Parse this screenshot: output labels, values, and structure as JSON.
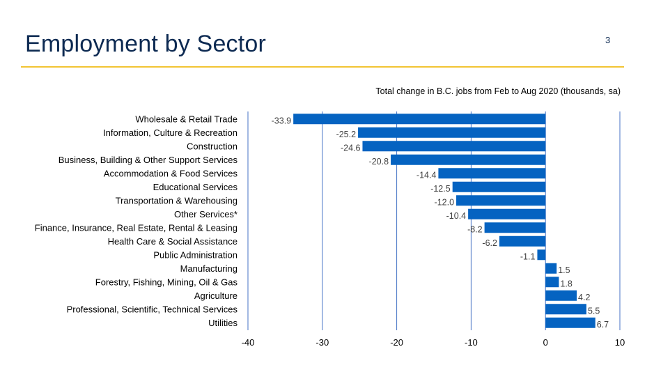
{
  "slide": {
    "title": "Employment by Sector",
    "page_number": "3"
  },
  "colors": {
    "title": "#0d2a52",
    "rule": "#f2c433",
    "bar": "#0563c1",
    "gridline": "#4472c4"
  },
  "chart_data": {
    "type": "bar",
    "orientation": "horizontal",
    "title": "Total change in B.C. jobs from Feb to Aug 2020 (thousands, sa)",
    "categories": [
      "Wholesale & Retail Trade",
      "Information, Culture & Recreation",
      "Construction",
      "Business, Building & Other Support Services",
      "Accommodation & Food Services",
      "Educational Services",
      "Transportation & Warehousing",
      "Other Services*",
      "Finance, Insurance, Real Estate, Rental & Leasing",
      "Health Care & Social Assistance",
      "Public Administration",
      "Manufacturing",
      "Forestry, Fishing, Mining, Oil & Gas",
      "Agriculture",
      "Professional, Scientific, Technical Services",
      "Utilities"
    ],
    "values": [
      -33.9,
      -25.2,
      -24.6,
      -20.8,
      -14.4,
      -12.5,
      -12.0,
      -10.4,
      -8.2,
      -6.2,
      -1.1,
      1.5,
      1.8,
      4.2,
      5.5,
      6.7
    ],
    "value_labels": [
      "-33.9",
      "-25.2",
      "-24.6",
      "-20.8",
      "-14.4",
      "-12.5",
      "-12.0",
      "-10.4",
      "-8.2",
      "-6.2",
      "-1.1",
      "1.5",
      "1.8",
      "4.2",
      "5.5",
      "6.7"
    ],
    "xlim": [
      -40,
      10
    ],
    "xticks": [
      -40,
      -30,
      -20,
      -10,
      0,
      10
    ],
    "xtick_labels": [
      "-40",
      "-30",
      "-20",
      "-10",
      "0",
      "10"
    ],
    "grid": "vertical",
    "legend": "none"
  }
}
